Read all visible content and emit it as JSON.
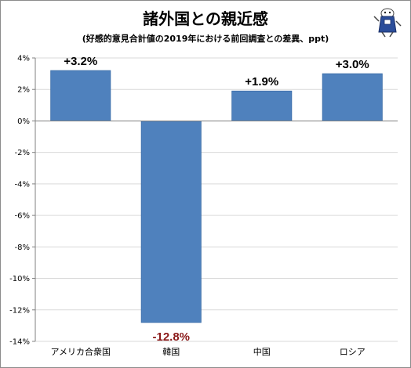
{
  "chart_data": {
    "type": "bar",
    "title": "諸外国との親近感",
    "subtitle": "(好感的意見合計値の2019年における前回調査との差異、ppt)",
    "categories": [
      "アメリカ合衆国",
      "韓国",
      "中国",
      "ロシア"
    ],
    "values": [
      3.2,
      -12.8,
      1.9,
      3.0
    ],
    "value_labels": [
      "+3.2%",
      "-12.8%",
      "+1.9%",
      "+3.0%"
    ],
    "ylim": [
      -14,
      4
    ],
    "yticks": [
      4,
      2,
      0,
      -2,
      -4,
      -6,
      -8,
      -10,
      -12,
      -14
    ],
    "ytick_labels": [
      "4%",
      "2%",
      "0%",
      "-2%",
      "-4%",
      "-6%",
      "-8%",
      "-10%",
      "-12%",
      "-14%"
    ],
    "grid": true,
    "colors": {
      "bar": "#4f81bd",
      "bar_edge": "#3c6ea8",
      "positive_label": "#000000",
      "negative_label": "#8b1a1a",
      "grid": "#d9d9d9"
    }
  },
  "mascot": {
    "icon": "character-mascot-icon"
  }
}
